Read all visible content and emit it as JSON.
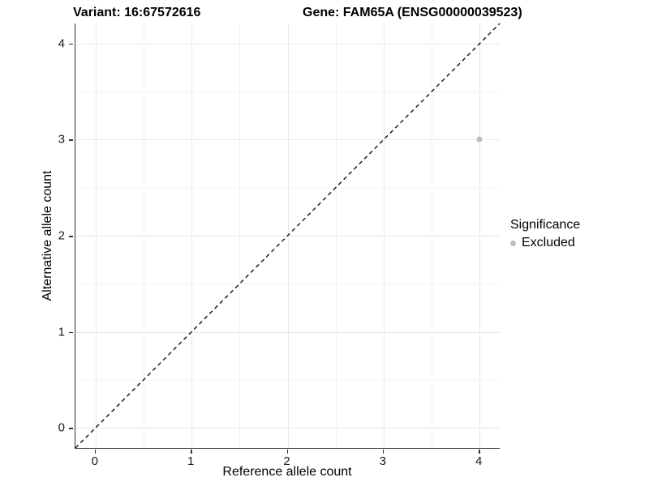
{
  "header": {
    "variant_title": "Variant: 16:67572616",
    "gene_title": "Gene: FAM65A (ENSG00000039523)"
  },
  "legend": {
    "title": "Significance",
    "items": [
      {
        "label": "Excluded",
        "color": "#bdbdbd"
      }
    ]
  },
  "colors": {
    "background": "#ffffff",
    "major_grid": "#e7e7e7",
    "minor_grid": "#f2f2f2",
    "axis_line": "#333333",
    "tick_text": "#1a1a1a",
    "title_text": "#000000",
    "excluded_point": "#bdbdbd",
    "reference_line": "#000000"
  },
  "chart_data": {
    "type": "scatter",
    "title_left": "Variant: 16:67572616",
    "title_right": "Gene: FAM65A (ENSG00000039523)",
    "xlabel": "Reference allele count",
    "ylabel": "Alternative allele count",
    "xlim": [
      -0.21,
      4.21
    ],
    "ylim": [
      -0.21,
      4.21
    ],
    "x_ticks": [
      0,
      1,
      2,
      3,
      4
    ],
    "y_ticks": [
      0,
      1,
      2,
      3,
      4
    ],
    "x_minor_ticks": [
      0.5,
      1.5,
      2.5,
      3.5
    ],
    "y_minor_ticks": [
      0.5,
      1.5,
      2.5,
      3.5
    ],
    "grid": true,
    "legend_title": "Significance",
    "legend_position": "right",
    "series": [
      {
        "name": "Excluded",
        "color": "#bdbdbd",
        "points": [
          {
            "x": 4,
            "y": 3
          }
        ]
      }
    ],
    "reference_line": {
      "kind": "identity",
      "slope": 1,
      "intercept": 0,
      "style": "dashed",
      "color": "#000000"
    }
  }
}
